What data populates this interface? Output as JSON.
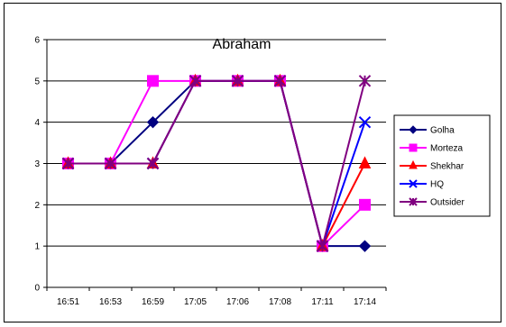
{
  "chart_data": {
    "type": "line",
    "title": "Abraham",
    "xlabel": "",
    "ylabel": "",
    "categories": [
      "16:51",
      "16:53",
      "16:59",
      "17:05",
      "17:06",
      "17:08",
      "17:11",
      "17:14"
    ],
    "ylim": [
      0,
      6
    ],
    "yticks": [
      0,
      1,
      2,
      3,
      4,
      5,
      6
    ],
    "grid": true,
    "legend_position": "right",
    "series": [
      {
        "name": "Golha",
        "color": "#000080",
        "marker": "diamond",
        "values": [
          3,
          3,
          4,
          5,
          5,
          5,
          1,
          1
        ]
      },
      {
        "name": "Morteza",
        "color": "#FF00FF",
        "marker": "square",
        "values": [
          3,
          3,
          5,
          5,
          5,
          5,
          1,
          2
        ]
      },
      {
        "name": "Shekhar",
        "color": "#FF0000",
        "marker": "triangle",
        "values": [
          3,
          3,
          3,
          5,
          5,
          5,
          1,
          3
        ]
      },
      {
        "name": "HQ",
        "color": "#0000FF",
        "marker": "x",
        "values": [
          3,
          3,
          3,
          5,
          5,
          5,
          1,
          4
        ]
      },
      {
        "name": "Outsider",
        "color": "#800080",
        "marker": "star",
        "values": [
          3,
          3,
          3,
          5,
          5,
          5,
          1,
          5
        ]
      }
    ]
  }
}
